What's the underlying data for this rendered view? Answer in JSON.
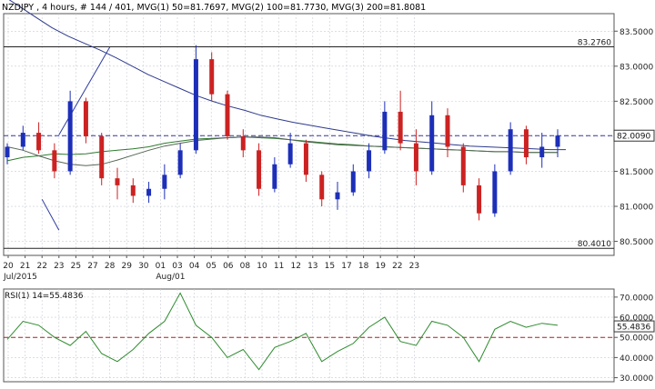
{
  "header": {
    "title": "NZDJPY , 4 hours, # 144 / 401, MVG(1) 50=81.7697, MVG(2) 100=81.7730, MVG(3) 200=81.8081"
  },
  "colors": {
    "up_candle": "#1d2fb8",
    "down_candle": "#cc2222",
    "mvg1": "#2e7a2e",
    "mvg2": "#556655",
    "mvg3": "#2d3a8c",
    "trendline": "#2d3aa0",
    "hline": "#222222",
    "current_price_line": "#3b3ba6",
    "rsi_line": "#2e8b2e",
    "rsi_mid": "#aa2222",
    "grid": "#c8ccd4"
  },
  "chart_data": [
    {
      "type": "candlestick",
      "instrument": "NZDJPY",
      "timeframe": "4 hours",
      "x_labels": [
        "20",
        "21",
        "22",
        "23",
        "25",
        "27",
        "28",
        "29",
        "30",
        "01",
        "03",
        "04",
        "05",
        "06",
        "08",
        "10",
        "11",
        "12",
        "13",
        "15",
        "17",
        "18",
        "19",
        "22",
        "23"
      ],
      "x_sub_labels": [
        {
          "at": "20",
          "text": "Jul/2015"
        },
        {
          "at": "01",
          "text": "Aug/01"
        }
      ],
      "y_ticks": [
        "83.5000",
        "83.0000",
        "82.5000",
        "82.0000",
        "81.5000",
        "81.0000",
        "80.5000"
      ],
      "ylim": [
        80.3,
        83.75
      ],
      "levels": {
        "resistance": {
          "label": "83.2760",
          "value": 83.276
        },
        "support": {
          "label": "80.4010",
          "value": 80.401
        },
        "current": {
          "label": "82.0090",
          "value": 82.009
        }
      },
      "trendlines": [
        {
          "name": "upper",
          "from": {
            "x": "28",
            "y": 83.27
          },
          "to": {
            "x": "23",
            "y": 82.02
          }
        },
        {
          "name": "lower",
          "from": {
            "x": "22",
            "y": 81.1
          },
          "to": {
            "x": "23",
            "y": 80.66
          }
        }
      ],
      "series": [
        {
          "name": "MVG(1) 50",
          "value_label": "81.7697",
          "values": [
            81.65,
            81.7,
            81.72,
            81.75,
            81.74,
            81.75,
            81.78,
            81.8,
            81.82,
            81.85,
            81.9,
            81.93,
            81.96,
            81.97,
            81.98,
            81.99,
            81.98,
            81.97,
            81.95,
            81.93,
            81.91,
            81.89,
            81.88,
            81.86,
            81.85,
            81.84,
            81.83,
            81.82,
            81.81,
            81.8,
            81.79,
            81.78,
            81.78,
            81.77,
            81.77,
            81.77
          ]
        },
        {
          "name": "MVG(2) 100",
          "value_label": "81.7730",
          "values": [
            81.85,
            81.8,
            81.72,
            81.65,
            81.6,
            81.58,
            81.6,
            81.66,
            81.73,
            81.8,
            81.86,
            81.9,
            81.94,
            81.96,
            81.98,
            81.99,
            81.99,
            81.98,
            81.95,
            81.92,
            81.9,
            81.88,
            81.87,
            81.86,
            81.85,
            81.84,
            81.83,
            81.82,
            81.81,
            81.8,
            81.79,
            81.78,
            81.78,
            81.77,
            81.77,
            81.77
          ]
        },
        {
          "name": "MVG(3) 200",
          "value_label": "81.8081",
          "values": [
            84.0,
            83.85,
            83.7,
            83.55,
            83.43,
            83.33,
            83.23,
            83.12,
            83.0,
            82.88,
            82.78,
            82.68,
            82.58,
            82.5,
            82.43,
            82.37,
            82.3,
            82.25,
            82.2,
            82.16,
            82.12,
            82.08,
            82.04,
            82.0,
            81.97,
            81.94,
            81.92,
            81.9,
            81.88,
            81.86,
            81.85,
            81.84,
            81.83,
            81.82,
            81.81,
            81.81
          ]
        }
      ],
      "candles": [
        [
          81.7,
          81.9,
          81.6,
          81.85
        ],
        [
          81.85,
          82.15,
          81.8,
          82.05
        ],
        [
          82.05,
          82.2,
          81.75,
          81.8
        ],
        [
          81.8,
          81.9,
          81.4,
          81.5
        ],
        [
          81.5,
          82.65,
          81.45,
          82.5
        ],
        [
          82.5,
          82.55,
          81.9,
          82.0
        ],
        [
          82.0,
          82.05,
          81.3,
          81.4
        ],
        [
          81.4,
          81.55,
          81.1,
          81.3
        ],
        [
          81.3,
          81.4,
          81.05,
          81.15
        ],
        [
          81.15,
          81.35,
          81.05,
          81.25
        ],
        [
          81.25,
          81.6,
          81.1,
          81.45
        ],
        [
          81.45,
          81.9,
          81.4,
          81.8
        ],
        [
          81.8,
          83.3,
          81.75,
          83.1
        ],
        [
          83.1,
          83.2,
          82.5,
          82.6
        ],
        [
          82.6,
          82.65,
          81.95,
          82.0
        ],
        [
          82.0,
          82.1,
          81.7,
          81.8
        ],
        [
          81.8,
          81.9,
          81.15,
          81.25
        ],
        [
          81.25,
          81.7,
          81.2,
          81.6
        ],
        [
          81.6,
          82.05,
          81.55,
          81.9
        ],
        [
          81.9,
          81.95,
          81.35,
          81.45
        ],
        [
          81.45,
          81.5,
          81.0,
          81.1
        ],
        [
          81.1,
          81.35,
          80.95,
          81.2
        ],
        [
          81.2,
          81.6,
          81.15,
          81.5
        ],
        [
          81.5,
          81.9,
          81.4,
          81.8
        ],
        [
          81.8,
          82.5,
          81.75,
          82.35
        ],
        [
          82.35,
          82.65,
          81.8,
          81.9
        ],
        [
          81.9,
          82.1,
          81.3,
          81.5
        ],
        [
          81.5,
          82.5,
          81.45,
          82.3
        ],
        [
          82.3,
          82.4,
          81.7,
          81.85
        ],
        [
          81.85,
          81.9,
          81.2,
          81.3
        ],
        [
          81.3,
          81.4,
          80.8,
          80.9
        ],
        [
          80.9,
          81.6,
          80.85,
          81.5
        ],
        [
          81.5,
          82.2,
          81.45,
          82.1
        ],
        [
          82.1,
          82.15,
          81.6,
          81.7
        ],
        [
          81.7,
          82.05,
          81.55,
          81.85
        ],
        [
          81.85,
          82.1,
          81.7,
          82.01
        ]
      ]
    },
    {
      "type": "line",
      "name": "RSI(1) 14",
      "header_label": "RSI(1) 14=55.4836",
      "y_ticks": [
        "70.0000",
        "60.0000",
        "50.0000",
        "40.0000",
        "30.0000"
      ],
      "ylim": [
        28,
        74
      ],
      "current": {
        "label": "55.4836",
        "value": 55.4836
      },
      "midline": 50,
      "values": [
        49,
        58,
        56,
        50,
        46,
        53,
        42,
        38,
        44,
        52,
        58,
        72,
        56,
        50,
        40,
        44,
        34,
        45,
        48,
        52,
        38,
        43,
        47,
        55,
        60,
        48,
        46,
        58,
        56,
        50,
        38,
        54,
        58,
        55,
        57,
        56
      ]
    }
  ]
}
